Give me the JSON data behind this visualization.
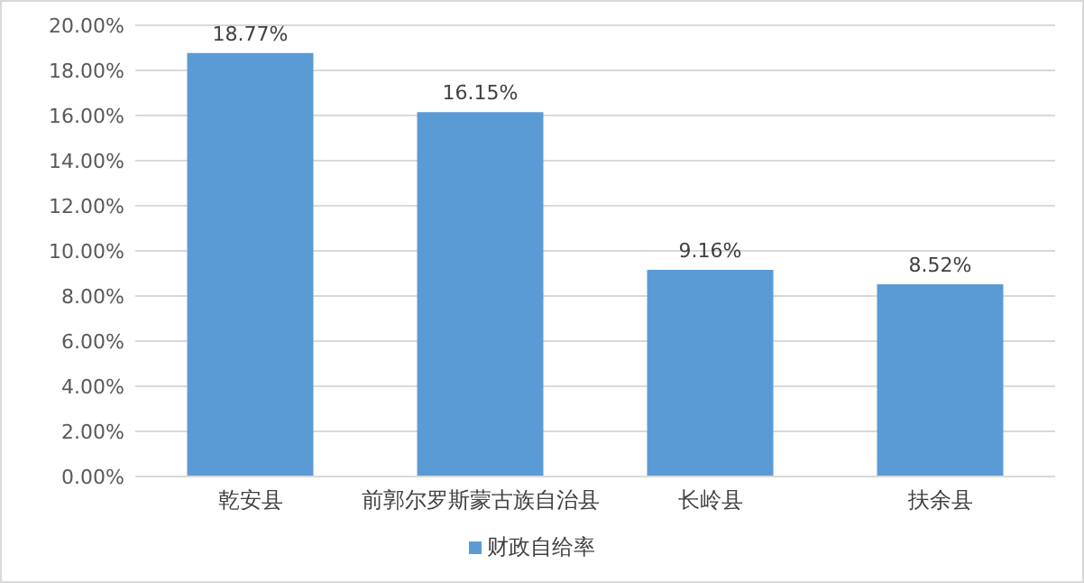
{
  "chart_data": {
    "type": "bar",
    "categories": [
      "乾安县",
      "前郭尔罗斯蒙古族自治县",
      "长岭县",
      "扶余县"
    ],
    "series": [
      {
        "name": "财政自给率",
        "color": "#5b9bd5",
        "values": [
          18.77,
          16.15,
          9.16,
          8.52
        ],
        "value_labels": [
          "18.77%",
          "16.15%",
          "9.16%",
          "8.52%"
        ]
      }
    ],
    "ylim": [
      0,
      20
    ],
    "yticks": [
      {
        "value": 0,
        "label": "0.00%"
      },
      {
        "value": 2,
        "label": "2.00%"
      },
      {
        "value": 4,
        "label": "4.00%"
      },
      {
        "value": 6,
        "label": "6.00%"
      },
      {
        "value": 8,
        "label": "8.00%"
      },
      {
        "value": 10,
        "label": "10.00%"
      },
      {
        "value": 12,
        "label": "12.00%"
      },
      {
        "value": 14,
        "label": "14.00%"
      },
      {
        "value": 16,
        "label": "16.00%"
      },
      {
        "value": 18,
        "label": "18.00%"
      },
      {
        "value": 20,
        "label": "20.00%"
      }
    ],
    "grid": "y",
    "legend": "bottom"
  }
}
